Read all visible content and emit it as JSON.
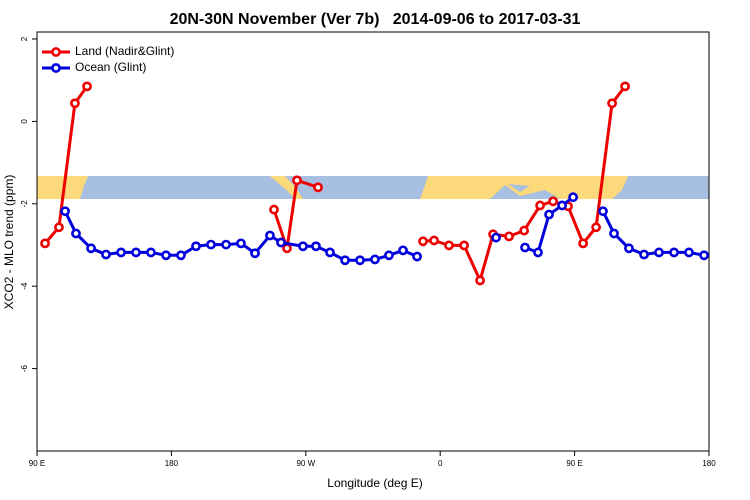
{
  "chart_data": {
    "type": "line",
    "title": "20N-30N November (Ver 7b)   2014-09-06 to 2017-03-31",
    "x_label": "Longitude (deg E)",
    "y_label": "XCO2 - MLO trend (ppm)",
    "xlim": [
      90,
      540
    ],
    "ylim": [
      -8,
      2.17
    ],
    "xticks": [
      {
        "value": 90,
        "label": "90 E"
      },
      180,
      {
        "value": 270,
        "label": "90 W"
      },
      {
        "value": 360,
        "label": "0"
      },
      {
        "value": 450,
        "label": "90 E"
      },
      {
        "value": 540,
        "label": "180"
      }
    ],
    "yticks": [
      -6,
      -4,
      -2,
      0,
      2
    ],
    "legend": "top-left",
    "series": [
      {
        "name": "Land (Nadir&Glint)",
        "color": "#ee0000",
        "x": [
          95.4,
          104.7,
          115.4,
          123.5,
          null,
          248.7,
          257.4,
          264.1,
          278.2,
          null,
          348.5,
          355.9,
          365.9,
          376,
          386.7,
          395.4,
          406.1,
          416.2,
          426.9,
          435.6,
          445.6,
          455.7,
          464.4,
          475.1,
          483.8
        ],
        "values": [
          -2.96,
          -2.57,
          0.44,
          0.85,
          null,
          -2.14,
          -3.08,
          -1.43,
          -1.6,
          null,
          -2.91,
          -2.89,
          -3.01,
          -3.01,
          -3.86,
          -2.74,
          -2.79,
          -2.65,
          -2.04,
          -1.94,
          -2.06,
          -2.96,
          -2.57,
          0.44,
          0.85
        ]
      },
      {
        "name": "Ocean (Glint)",
        "color": "#0000dd",
        "x": [
          108.8,
          116.1,
          126.2,
          136.2,
          146.3,
          156.3,
          166.3,
          176.4,
          186.4,
          196.5,
          206.5,
          216.6,
          226.6,
          236,
          246,
          253.4,
          268.1,
          276.8,
          286.2,
          296.3,
          306.3,
          316.3,
          325.7,
          335.1,
          344.5,
          null,
          397.4,
          null,
          416.8,
          425.5,
          432.9,
          441.6,
          449,
          null,
          469,
          476.4,
          486.4,
          496.5,
          506.5,
          516.6,
          526.6,
          536.7
        ],
        "values": [
          -2.18,
          -2.72,
          -3.08,
          -3.23,
          -3.18,
          -3.18,
          -3.18,
          -3.25,
          -3.25,
          -3.03,
          -2.99,
          -2.99,
          -2.96,
          -3.2,
          -2.77,
          -2.94,
          -3.03,
          -3.03,
          -3.18,
          -3.37,
          -3.37,
          -3.35,
          -3.25,
          -3.13,
          -3.28,
          null,
          -2.82,
          null,
          -3.06,
          -3.18,
          -2.26,
          -2.04,
          -1.84,
          null,
          -2.18,
          -2.72,
          -3.08,
          -3.23,
          -3.18,
          -3.18,
          -3.18,
          -3.25
        ]
      }
    ]
  }
}
